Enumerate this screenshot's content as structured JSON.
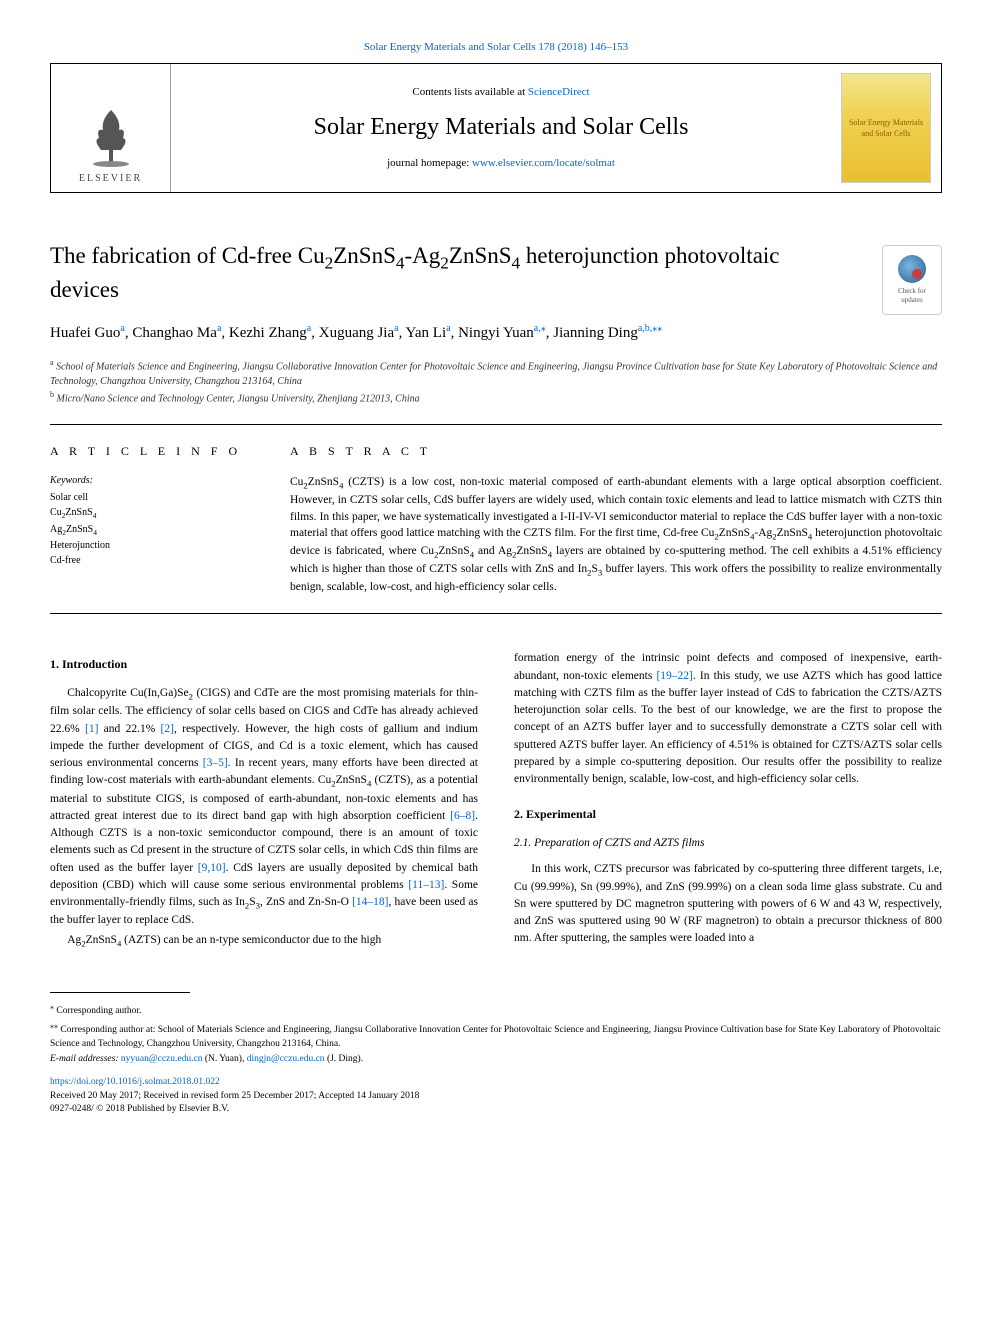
{
  "banner": {
    "citation": "Solar Energy Materials and Solar Cells 178 (2018) 146–153"
  },
  "masthead": {
    "publisher_label": "ELSEVIER",
    "contents_prefix": "Contents lists available at ",
    "contents_link": "ScienceDirect",
    "journal_title": "Solar Energy Materials and Solar Cells",
    "homepage_prefix": "journal homepage: ",
    "homepage_url": "www.elsevier.com/locate/solmat",
    "cover_text": "Solar Energy Materials and Solar Cells"
  },
  "updates_badge": {
    "line1": "Check for",
    "line2": "updates"
  },
  "article": {
    "title_html": "The fabrication of Cd-free Cu<sub>2</sub>ZnSnS<sub>4</sub>-Ag<sub>2</sub>ZnSnS<sub>4</sub> heterojunction photovoltaic devices",
    "authors": [
      {
        "name": "Huafei Guo",
        "aff": "a"
      },
      {
        "name": "Changhao Ma",
        "aff": "a"
      },
      {
        "name": "Kezhi Zhang",
        "aff": "a"
      },
      {
        "name": "Xuguang Jia",
        "aff": "a"
      },
      {
        "name": "Yan Li",
        "aff": "a"
      },
      {
        "name": "Ningyi Yuan",
        "aff": "a,",
        "corr": "⁎"
      },
      {
        "name": "Jianning Ding",
        "aff": "a,b,",
        "corr": "⁎⁎"
      }
    ],
    "affiliations": [
      {
        "label": "a",
        "text": "School of Materials Science and Engineering, Jiangsu Collaborative Innovation Center for Photovoltaic Science and Engineering, Jiangsu Province Cultivation base for State Key Laboratory of Photovoltaic Science and Technology, Changzhou University, Changzhou 213164, China"
      },
      {
        "label": "b",
        "text": "Micro/Nano Science and Technology Center, Jiangsu University, Zhenjiang 212013, China"
      }
    ]
  },
  "article_info": {
    "heading": "A R T I C L E  I N F O",
    "kw_label": "Keywords:",
    "keywords_html": [
      "Solar cell",
      "Cu<sub>2</sub>ZnSnS<sub>4</sub>",
      "Ag<sub>2</sub>ZnSnS<sub>4</sub>",
      "Heterojunction",
      "Cd-free"
    ]
  },
  "abstract": {
    "heading": "A B S T R A C T",
    "text_html": "Cu<sub>2</sub>ZnSnS<sub>4</sub> (CZTS) is a low cost, non-toxic material composed of earth-abundant elements with a large optical absorption coefficient. However, in CZTS solar cells, CdS buffer layers are widely used, which contain toxic elements and lead to lattice mismatch with CZTS thin films. In this paper, we have systematically investigated a I-II-IV-VI semiconductor material to replace the CdS buffer layer with a non-toxic material that offers good lattice matching with the CZTS film. For the first time, Cd-free Cu<sub>2</sub>ZnSnS<sub>4</sub>-Ag<sub>2</sub>ZnSnS<sub>4</sub> heterojunction photovoltaic device is fabricated, where Cu<sub>2</sub>ZnSnS<sub>4</sub> and Ag<sub>2</sub>ZnSnS<sub>4</sub> layers are obtained by co-sputtering method. The cell exhibits a 4.51% efficiency which is higher than those of CZTS solar cells with ZnS and In<sub>2</sub>S<sub>3</sub> buffer layers. This work offers the possibility to realize environmentally benign, scalable, low-cost, and high-efficiency solar cells."
  },
  "sections": {
    "intro_heading": "1. Introduction",
    "intro_p1_html": "Chalcopyrite Cu(In,Ga)Se<sub>2</sub> (CIGS) and CdTe are the most promising materials for thin-film solar cells. The efficiency of solar cells based on CIGS and CdTe has already achieved 22.6% <span class=\"cite\">[1]</span> and 22.1% <span class=\"cite\">[2]</span>, respectively. However, the high costs of gallium and indium impede the further development of CIGS, and Cd is a toxic element, which has caused serious environmental concerns <span class=\"cite\">[3–5]</span>. In recent years, many efforts have been directed at finding low-cost materials with earth-abundant elements. Cu<sub>2</sub>ZnSnS<sub>4</sub> (CZTS), as a potential material to substitute CIGS, is composed of earth-abundant, non-toxic elements and has attracted great interest due to its direct band gap with high absorption coefficient <span class=\"cite\">[6–8]</span>. Although CZTS is a non-toxic semiconductor compound, there is an amount of toxic elements such as Cd present in the structure of CZTS solar cells, in which CdS thin films are often used as the buffer layer <span class=\"cite\">[9,10]</span>. CdS layers are usually deposited by chemical bath deposition (CBD) which will cause some serious environmental problems <span class=\"cite\">[11–13]</span>. Some environmentally-friendly films, such as In<sub>2</sub>S<sub>3</sub>, ZnS and Zn-Sn-O <span class=\"cite\">[14–18]</span>, have been used as the buffer layer to replace CdS.",
    "intro_p2_html": "Ag<sub>2</sub>ZnSnS<sub>4</sub> (AZTS) can be an n-type semiconductor due to the high",
    "intro_p3_html": "formation energy of the intrinsic point defects and composed of inexpensive, earth-abundant, non-toxic elements <span class=\"cite\">[19–22]</span>. In this study, we use AZTS which has good lattice matching with CZTS film as the buffer layer instead of CdS to fabrication the CZTS/AZTS heterojunction solar cells. To the best of our knowledge, we are the first to propose the concept of an AZTS buffer layer and to successfully demonstrate a CZTS solar cell with sputtered AZTS buffer layer. An efficiency of 4.51% is obtained for CZTS/AZTS solar cells prepared by a simple co-sputtering deposition. Our results offer the possibility to realize environmentally benign, scalable, low-cost, and high-efficiency solar cells.",
    "exp_heading": "2. Experimental",
    "exp_sub_heading": "2.1. Preparation of CZTS and AZTS films",
    "exp_p1_html": "In this work, CZTS precursor was fabricated by co-sputtering three different targets, i.e, Cu (99.99%), Sn (99.99%), and ZnS (99.99%) on a clean soda lime glass substrate. Cu and Sn were sputtered by DC magnetron sputtering with powers of 6 W and 43 W, respectively, and ZnS was sputtered using 90 W (RF magnetron) to obtain a precursor thickness of 800 nm. After sputtering, the samples were loaded into a"
  },
  "footnotes": {
    "corr1": "Corresponding author.",
    "corr2": "Corresponding author at: School of Materials Science and Engineering, Jiangsu Collaborative Innovation Center for Photovoltaic Science and Engineering, Jiangsu Province Cultivation base for State Key Laboratory of Photovoltaic Science and Technology, Changzhou University, Changzhou 213164, China.",
    "email_label": "E-mail addresses: ",
    "email1": "nyyuan@cczu.edu.cn",
    "email1_name": " (N. Yuan), ",
    "email2": "dingjn@cczu.edu.cn",
    "email2_name": " (J. Ding)."
  },
  "doi": {
    "url": "https://doi.org/10.1016/j.solmat.2018.01.022",
    "history": "Received 20 May 2017; Received in revised form 25 December 2017; Accepted 14 January 2018",
    "copyright": "0927-0248/ © 2018 Published by Elsevier B.V."
  },
  "colors": {
    "link": "#0066cc",
    "text": "#000000",
    "rule": "#000000"
  }
}
